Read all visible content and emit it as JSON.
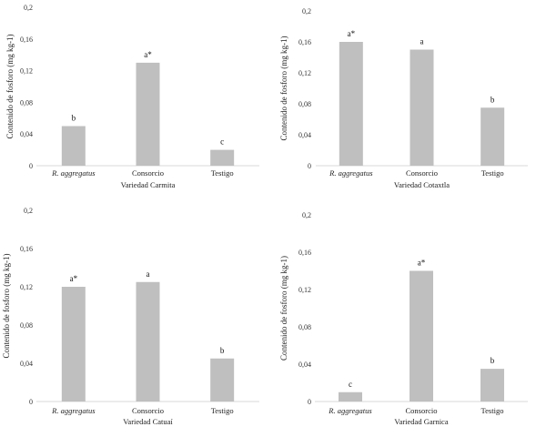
{
  "chart_data": [
    {
      "type": "bar",
      "categories": [
        "R. aggregatus",
        "Consorcio",
        "Testigo"
      ],
      "italic_categories": [
        true,
        false,
        false
      ],
      "values": [
        0.05,
        0.13,
        0.02
      ],
      "labels": [
        "b",
        "a*",
        "c"
      ],
      "ylim": [
        0,
        0.2
      ],
      "yticks": [
        "0",
        "0,04",
        "0,08",
        "0,12",
        "0,16",
        "0,2"
      ],
      "ylabel": "Contenido de fosforo (mg kg-1)",
      "xlabel": "Variedad Carmita"
    },
    {
      "type": "bar",
      "categories": [
        "R. aggregatus",
        "Consorcio",
        "Testigo"
      ],
      "italic_categories": [
        true,
        false,
        false
      ],
      "values": [
        0.16,
        0.15,
        0.075
      ],
      "labels": [
        "a*",
        "a",
        "b"
      ],
      "ylim": [
        0,
        0.2
      ],
      "yticks": [
        "0",
        "0,04",
        "0,08",
        "0,12",
        "0,16",
        "0,2"
      ],
      "ylabel": "Contenido de fosforo (mg kg-1)",
      "xlabel": "Variedad Cotaxtla"
    },
    {
      "type": "bar",
      "categories": [
        "R. aggregatus",
        "Consorcio",
        "Testigo"
      ],
      "italic_categories": [
        true,
        false,
        false
      ],
      "values": [
        0.12,
        0.125,
        0.045
      ],
      "labels": [
        "a*",
        "a",
        "b"
      ],
      "ylim": [
        0,
        0.2
      ],
      "yticks": [
        "0",
        "0,04",
        "0,08",
        "0,12",
        "0,16",
        "0,2"
      ],
      "ylabel": "Contenido de fosforo (mg kg-1)",
      "xlabel": "Variedad Catuaí"
    },
    {
      "type": "bar",
      "categories": [
        "R. aggregatus",
        "Consorcio",
        "Testigo"
      ],
      "italic_categories": [
        true,
        false,
        false
      ],
      "values": [
        0.01,
        0.14,
        0.035
      ],
      "labels": [
        "c",
        "a*",
        "b"
      ],
      "ylim": [
        0,
        0.2
      ],
      "yticks": [
        "0",
        "0,04",
        "0,08",
        "0,12",
        "0,16",
        "0,2"
      ],
      "ylabel": "Contenido de fosforo (mg kg-1)",
      "xlabel": "Variedad Garnica"
    }
  ]
}
